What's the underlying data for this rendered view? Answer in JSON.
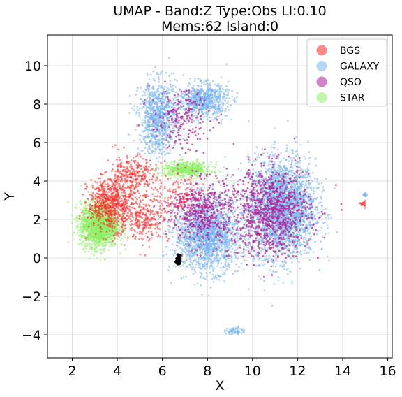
{
  "chart_data": {
    "type": "scatter",
    "title_line1": "UMAP  -  Band:Z Type:Obs Ll:0.10",
    "title_line2": "Mems:62 Island:0",
    "xlabel": "X",
    "ylabel": "Y",
    "xlim": [
      0.9,
      16.2
    ],
    "ylim": [
      -5.2,
      11.6
    ],
    "xticks": [
      2,
      4,
      6,
      8,
      10,
      12,
      14,
      16
    ],
    "yticks": [
      -4,
      -2,
      0,
      2,
      4,
      6,
      8,
      10
    ],
    "xtick_labels": [
      "2",
      "4",
      "6",
      "8",
      "10",
      "12",
      "14",
      "16"
    ],
    "ytick_labels": [
      "−4",
      "−2",
      "0",
      "2",
      "4",
      "6",
      "8",
      "10"
    ],
    "grid": true,
    "legend_position": "top-right",
    "series": [
      {
        "name": "BGS",
        "color": "#ff2a2a",
        "clusters": [
          {
            "center": [
              3.7,
              2.8
            ],
            "spread": [
              0.9,
              1.2
            ],
            "count": 650
          },
          {
            "center": [
              4.6,
              4.2
            ],
            "spread": [
              1.0,
              1.0
            ],
            "count": 300
          },
          {
            "center": [
              5.2,
              2.0
            ],
            "spread": [
              1.0,
              1.0
            ],
            "count": 250
          },
          {
            "center": [
              6.8,
              3.2
            ],
            "spread": [
              1.2,
              1.0
            ],
            "count": 150
          },
          {
            "center": [
              14.9,
              2.8
            ],
            "spread": [
              0.1,
              0.15
            ],
            "count": 20
          }
        ]
      },
      {
        "name": "GALAXY",
        "color": "#78b4f0",
        "clusters": [
          {
            "center": [
              11.3,
              2.6
            ],
            "spread": [
              1.35,
              2.3
            ],
            "count": 2800
          },
          {
            "center": [
              8.0,
              1.2
            ],
            "spread": [
              1.3,
              1.7
            ],
            "count": 1800
          },
          {
            "center": [
              5.8,
              7.3
            ],
            "spread": [
              0.75,
              1.7
            ],
            "count": 900
          },
          {
            "center": [
              7.8,
              8.2
            ],
            "spread": [
              1.0,
              0.8
            ],
            "count": 700
          },
          {
            "center": [
              9.2,
              -3.8
            ],
            "spread": [
              0.35,
              0.2
            ],
            "count": 60
          },
          {
            "center": [
              15.0,
              3.3
            ],
            "spread": [
              0.08,
              0.1
            ],
            "count": 20
          }
        ]
      },
      {
        "name": "QSO",
        "color": "#b41e96",
        "clusters": [
          {
            "center": [
              10.8,
              2.4
            ],
            "spread": [
              1.6,
              2.1
            ],
            "count": 900
          },
          {
            "center": [
              7.8,
              2.4
            ],
            "spread": [
              1.3,
              1.5
            ],
            "count": 450
          },
          {
            "center": [
              6.8,
              7.2
            ],
            "spread": [
              1.2,
              1.4
            ],
            "count": 200
          }
        ]
      },
      {
        "name": "STAR",
        "color": "#8cf064",
        "clusters": [
          {
            "center": [
              3.2,
              1.7
            ],
            "spread": [
              0.75,
              1.05
            ],
            "count": 1700
          },
          {
            "center": [
              7.1,
              4.6
            ],
            "spread": [
              1.0,
              0.35
            ],
            "count": 500
          }
        ]
      }
    ],
    "annotation_cluster": {
      "color": "#000000",
      "center": [
        6.7,
        -0.1
      ],
      "spread": [
        0.08,
        0.18
      ],
      "count": 45
    }
  }
}
